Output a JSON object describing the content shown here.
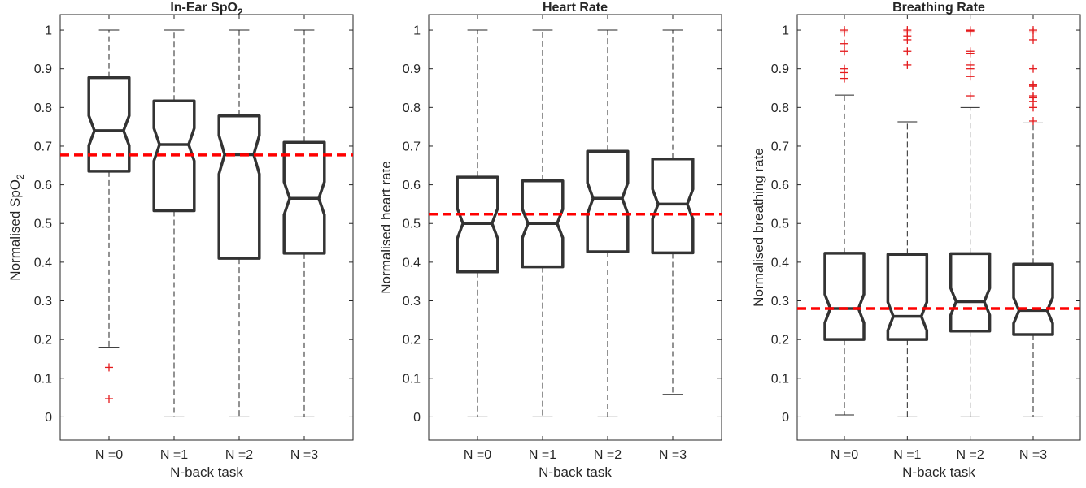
{
  "figure": {
    "background": "#ffffff",
    "box_color": "#333333",
    "whisker_color": "#262626",
    "outlier_color": "#e41a1c",
    "reference_line_color": "#ff0000"
  },
  "chart_data": [
    {
      "type": "boxplot",
      "title": "In-Ear SpO",
      "title_sub": "2",
      "xlabel": "N-back task",
      "ylabel": "Normalised SpO",
      "ylabel_sub": "2",
      "categories": [
        "N =0",
        "N =1",
        "N =2",
        "N =3"
      ],
      "ylim": [
        -0.06,
        1.04
      ],
      "yticks": [
        0,
        0.1,
        0.2,
        0.3,
        0.4,
        0.5,
        0.6,
        0.7,
        0.8,
        0.9,
        1
      ],
      "ytick_labels": [
        "0",
        "0.1",
        "0.2",
        "0.3",
        "0.4",
        "0.5",
        "0.6",
        "0.7",
        "0.8",
        "0.9",
        "1"
      ],
      "grid": false,
      "notched": true,
      "reference_line": 0.677,
      "boxes": [
        {
          "whisker_low": 0.18,
          "q1": 0.635,
          "median": 0.74,
          "q3": 0.877,
          "whisker_high": 1.0,
          "outliers": [
            0.128,
            0.047
          ]
        },
        {
          "whisker_low": 0.0,
          "q1": 0.533,
          "median": 0.704,
          "q3": 0.817,
          "whisker_high": 1.0,
          "outliers": []
        },
        {
          "whisker_low": 0.0,
          "q1": 0.41,
          "median": 0.678,
          "q3": 0.778,
          "whisker_high": 1.0,
          "outliers": []
        },
        {
          "whisker_low": 0.0,
          "q1": 0.423,
          "median": 0.565,
          "q3": 0.71,
          "whisker_high": 1.0,
          "outliers": []
        }
      ]
    },
    {
      "type": "boxplot",
      "title": "Heart Rate",
      "title_sub": "",
      "xlabel": "N-back task",
      "ylabel": "Normalised heart rate",
      "ylabel_sub": "",
      "categories": [
        "N =0",
        "N =1",
        "N =2",
        "N =3"
      ],
      "ylim": [
        -0.06,
        1.04
      ],
      "yticks": [
        0,
        0.1,
        0.2,
        0.3,
        0.4,
        0.5,
        0.6,
        0.7,
        0.8,
        0.9,
        1
      ],
      "ytick_labels": [
        "0",
        "0.1",
        "0.2",
        "0.3",
        "0.4",
        "0.5",
        "0.6",
        "0.7",
        "0.8",
        "0.9",
        "1"
      ],
      "grid": false,
      "notched": true,
      "reference_line": 0.524,
      "boxes": [
        {
          "whisker_low": 0.0,
          "q1": 0.375,
          "median": 0.5,
          "q3": 0.62,
          "whisker_high": 1.0,
          "outliers": []
        },
        {
          "whisker_low": 0.0,
          "q1": 0.388,
          "median": 0.5,
          "q3": 0.61,
          "whisker_high": 1.0,
          "outliers": []
        },
        {
          "whisker_low": 0.0,
          "q1": 0.427,
          "median": 0.565,
          "q3": 0.687,
          "whisker_high": 1.0,
          "outliers": []
        },
        {
          "whisker_low": 0.058,
          "q1": 0.424,
          "median": 0.55,
          "q3": 0.667,
          "whisker_high": 1.0,
          "outliers": []
        }
      ]
    },
    {
      "type": "boxplot",
      "title": "Breathing Rate",
      "title_sub": "",
      "xlabel": "N-back task",
      "ylabel": "Normalised breathing rate",
      "ylabel_sub": "",
      "categories": [
        "N =0",
        "N =1",
        "N =2",
        "N =3"
      ],
      "ylim": [
        -0.06,
        1.04
      ],
      "yticks": [
        0,
        0.1,
        0.2,
        0.3,
        0.4,
        0.5,
        0.6,
        0.7,
        0.8,
        0.9,
        1
      ],
      "ytick_labels": [
        "0",
        "0.1",
        "0.2",
        "0.3",
        "0.4",
        "0.5",
        "0.6",
        "0.7",
        "0.8",
        "0.9",
        "1"
      ],
      "grid": false,
      "notched": true,
      "reference_line": 0.28,
      "boxes": [
        {
          "whisker_low": 0.005,
          "q1": 0.2,
          "median": 0.28,
          "q3": 0.423,
          "whisker_high": 0.832,
          "outliers": [
            1.0,
            0.995,
            0.965,
            0.945,
            0.9,
            0.89,
            0.875
          ]
        },
        {
          "whisker_low": 0.0,
          "q1": 0.2,
          "median": 0.26,
          "q3": 0.42,
          "whisker_high": 0.763,
          "outliers": [
            1.0,
            0.995,
            0.985,
            0.975,
            0.945,
            0.91
          ]
        },
        {
          "whisker_low": 0.0,
          "q1": 0.222,
          "median": 0.298,
          "q3": 0.422,
          "whisker_high": 0.8,
          "outliers": [
            1.0,
            0.998,
            0.995,
            0.945,
            0.94,
            0.91,
            0.9,
            0.88,
            0.83
          ]
        },
        {
          "whisker_low": 0.0,
          "q1": 0.213,
          "median": 0.275,
          "q3": 0.395,
          "whisker_high": 0.76,
          "outliers": [
            1.0,
            0.995,
            0.975,
            0.9,
            0.858,
            0.855,
            0.83,
            0.825,
            0.815,
            0.8,
            0.765
          ]
        }
      ]
    }
  ]
}
